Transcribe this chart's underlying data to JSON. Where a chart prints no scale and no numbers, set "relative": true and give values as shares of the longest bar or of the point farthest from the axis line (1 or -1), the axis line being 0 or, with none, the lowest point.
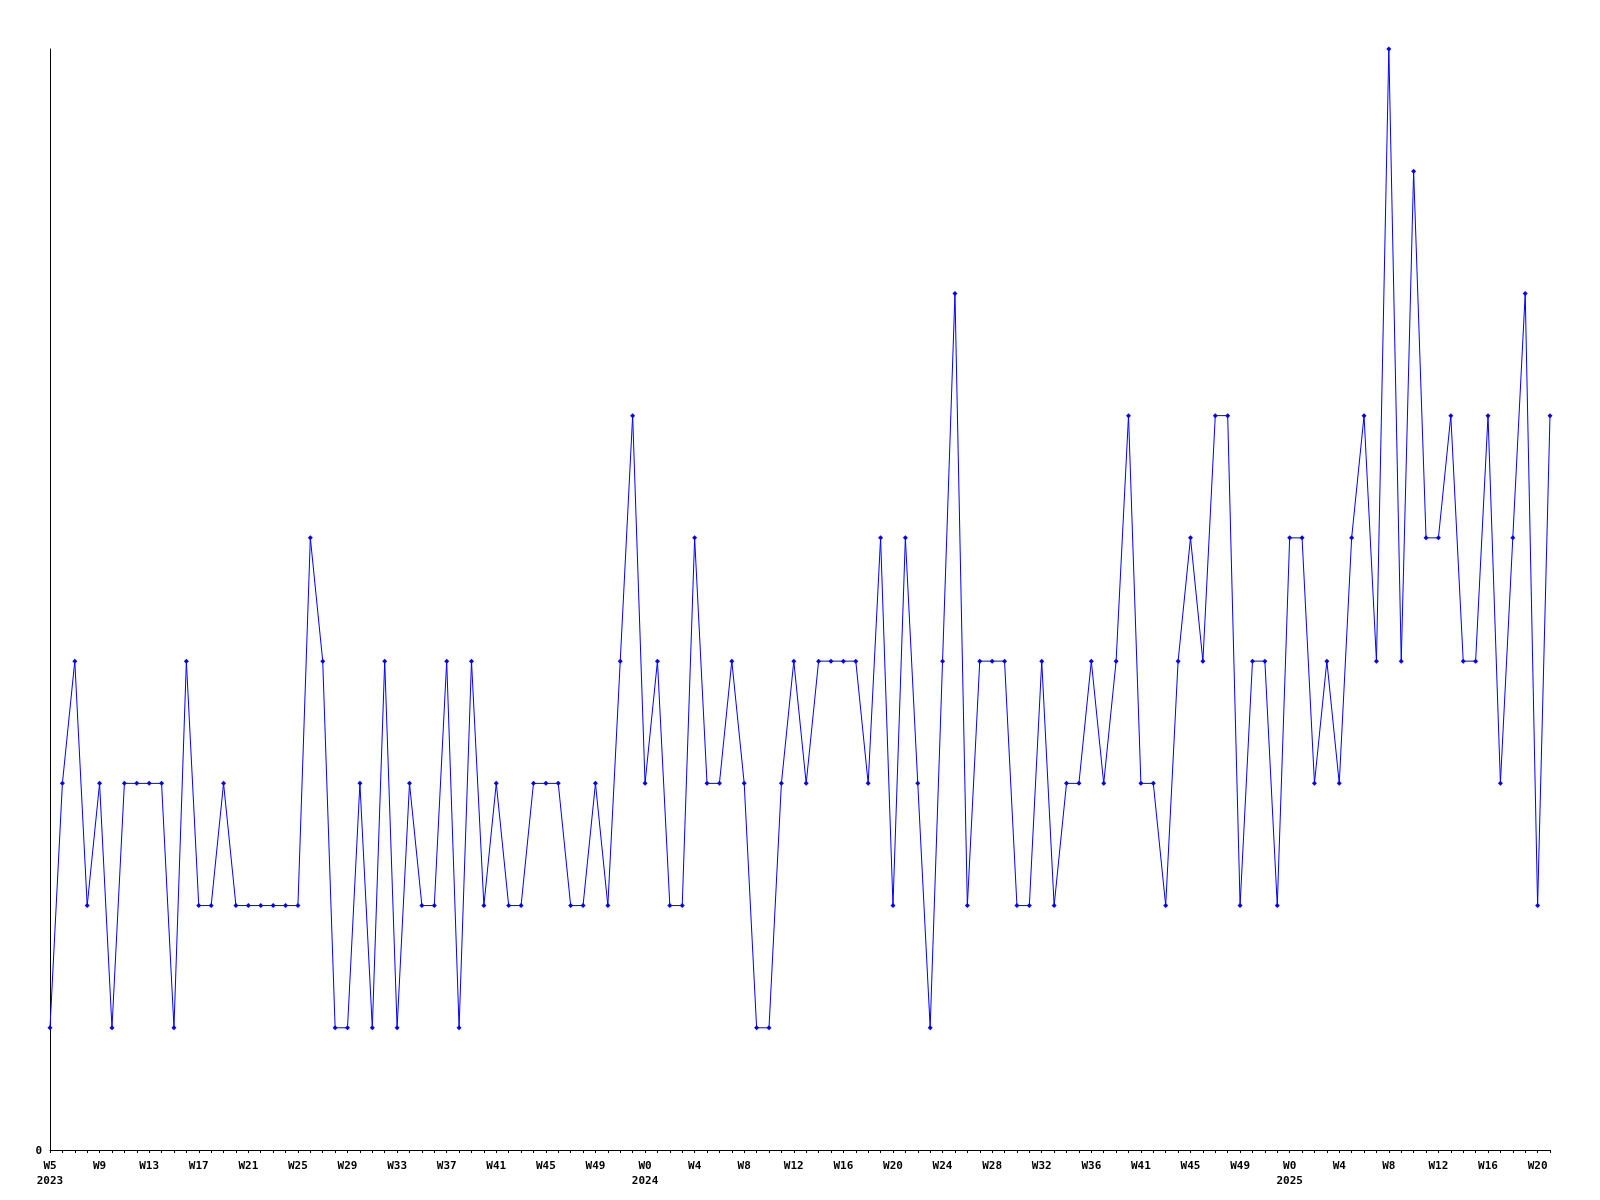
{
  "chart_data": {
    "type": "line",
    "relative": true,
    "marker": "diamond",
    "line_style": "solid",
    "grid": false,
    "annotations": [
      "0"
    ],
    "categories": [
      "W5\n2023",
      null,
      null,
      null,
      "W9",
      null,
      null,
      null,
      "W13",
      null,
      null,
      null,
      "W17",
      null,
      null,
      null,
      "W21",
      null,
      null,
      null,
      "W25",
      null,
      null,
      null,
      "W29",
      null,
      null,
      null,
      "W33",
      null,
      null,
      null,
      "W37",
      null,
      null,
      null,
      "W41",
      null,
      null,
      null,
      "W45",
      null,
      null,
      null,
      "W49",
      null,
      null,
      null,
      "W0\n2024",
      null,
      null,
      null,
      "W4",
      null,
      null,
      null,
      "W8",
      null,
      null,
      null,
      "W12",
      null,
      null,
      null,
      "W16",
      null,
      null,
      null,
      "W20",
      null,
      null,
      null,
      "W24",
      null,
      null,
      null,
      "W28",
      null,
      null,
      null,
      "W32",
      null,
      null,
      null,
      "W36",
      null,
      null,
      null,
      "W41",
      null,
      null,
      null,
      "W45",
      null,
      null,
      null,
      "W49",
      null,
      null,
      null,
      "W0\n2025",
      null,
      null,
      null,
      "W4",
      null,
      null,
      null,
      "W8",
      null,
      null,
      null,
      "W12",
      null,
      null,
      null,
      "W16",
      null,
      null,
      null,
      "W20",
      null
    ],
    "series": [
      {
        "color": "#0000ff",
        "values": [
          0.111,
          0.333,
          0.444,
          0.222,
          0.333,
          0.111,
          0.333,
          0.333,
          0.333,
          0.333,
          0.111,
          0.444,
          0.222,
          0.222,
          0.333,
          0.222,
          0.222,
          0.222,
          0.222,
          0.222,
          0.222,
          0.556,
          0.444,
          0.111,
          0.111,
          0.333,
          0.111,
          0.444,
          0.111,
          0.333,
          0.222,
          0.222,
          0.444,
          0.111,
          0.444,
          0.222,
          0.333,
          0.222,
          0.222,
          0.333,
          0.333,
          0.333,
          0.222,
          0.222,
          0.333,
          0.222,
          0.444,
          0.667,
          0.333,
          0.444,
          0.222,
          0.222,
          0.556,
          0.333,
          0.333,
          0.444,
          0.333,
          0.111,
          0.111,
          0.333,
          0.444,
          0.333,
          0.444,
          0.444,
          0.444,
          0.444,
          0.333,
          0.556,
          0.222,
          0.556,
          0.333,
          0.111,
          0.444,
          0.778,
          0.222,
          0.444,
          0.444,
          0.444,
          0.222,
          0.222,
          0.444,
          0.222,
          0.333,
          0.333,
          0.444,
          0.333,
          0.444,
          0.667,
          0.333,
          0.333,
          0.222,
          0.444,
          0.556,
          0.444,
          0.667,
          0.667,
          0.222,
          0.444,
          0.444,
          0.222,
          0.556,
          0.556,
          0.333,
          0.444,
          0.333,
          0.556,
          0.667,
          0.444,
          1,
          0.444,
          0.889,
          0.556,
          0.556,
          0.667,
          0.444,
          0.444,
          0.667,
          0.333,
          0.556,
          0.778,
          0.222,
          0.667
        ]
      }
    ]
  }
}
